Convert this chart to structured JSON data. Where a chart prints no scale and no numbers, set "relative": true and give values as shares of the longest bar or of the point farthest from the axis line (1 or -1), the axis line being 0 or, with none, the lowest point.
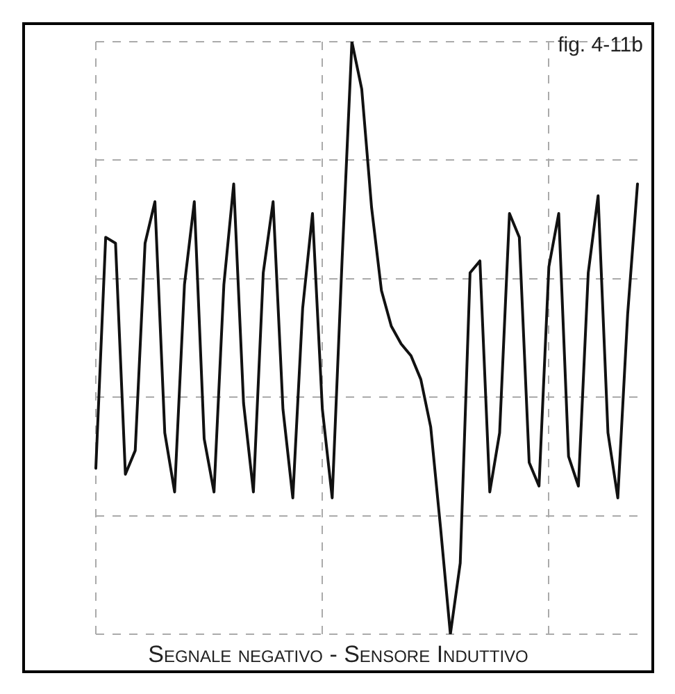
{
  "chart_data": {
    "type": "line",
    "relative": true,
    "grid": true,
    "legend": false,
    "marker": "none",
    "line_style": "solid",
    "annotations": [
      "fig. 4-11b",
      "Segnale negativo - Sensore Induttivo"
    ],
    "categories": [
      null,
      null,
      null,
      null,
      null,
      null,
      null,
      null,
      null,
      null,
      null,
      null,
      null,
      null,
      null,
      null,
      null,
      null,
      null,
      null,
      null,
      null,
      null,
      null,
      null,
      null,
      null,
      null,
      null,
      null,
      null,
      null,
      null,
      null,
      null,
      null,
      null,
      null,
      null,
      null,
      null,
      null,
      null,
      null,
      null,
      null,
      null,
      null,
      null,
      null,
      null,
      null,
      null,
      null,
      null,
      null
    ],
    "series": [
      {
        "color": "#111111",
        "values": [
          0.28,
          0.67,
          0.66,
          0.27,
          0.31,
          0.66,
          0.73,
          0.34,
          0.24,
          0.59,
          0.73,
          0.33,
          0.24,
          0.59,
          0.76,
          0.39,
          0.24,
          0.61,
          0.73,
          0.38,
          0.23,
          0.55,
          0.71,
          0.38,
          0.23,
          0.63,
          1,
          0.92,
          0.72,
          0.58,
          0.52,
          0.49,
          0.47,
          0.43,
          0.35,
          0.18,
          0,
          0.12,
          0.61,
          0.63,
          0.24,
          0.34,
          0.71,
          0.67,
          0.29,
          0.25,
          0.62,
          0.71,
          0.3,
          0.25,
          0.61,
          0.74,
          0.34,
          0.23,
          0.54,
          0.76
        ]
      }
    ]
  }
}
